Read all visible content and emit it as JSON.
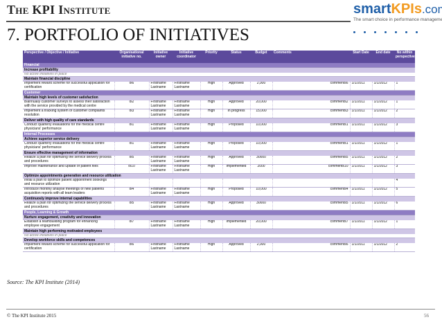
{
  "header": {
    "brand": "The KPI Institute",
    "logo": {
      "smart": "smart",
      "kpis": "KPIs",
      "com": ".com",
      "tagline": "The smart choice in performance management"
    },
    "title": "7. PORTFOLIO OF INITIATIVES"
  },
  "table": {
    "columns": [
      "Perspective / Objective / Initiative",
      "Organisational initiative no.",
      "Initiative owner",
      "Initiative coordinator",
      "Priority",
      "Status",
      "Budget",
      "Comments",
      "Start Date",
      "End date",
      "No within perspective"
    ],
    "rows": [
      {
        "type": "section",
        "label": "Financial"
      },
      {
        "type": "objective",
        "label": "Increase profitability"
      },
      {
        "type": "none",
        "label": "No active initiatives in place"
      },
      {
        "type": "objective",
        "label": "Maintain financial discipline"
      },
      {
        "type": "item",
        "cells": [
          "Implement reward scheme for successful application for certification",
          "oi6",
          "Firstname Lastname",
          "Firstname Lastname",
          "High",
          "Approved",
          "2,000",
          "comments6",
          "1/1/2011",
          "1/1/2012",
          "1"
        ]
      },
      {
        "type": "section",
        "label": "Customer"
      },
      {
        "type": "objective",
        "label": "Maintain high levels of customer satisfaction"
      },
      {
        "type": "item",
        "cells": [
          "Biannually customer surveys to assess their satisfaction with the service provided by the medical centre",
          "oi2",
          "Firstname Lastname",
          "Firstname Lastname",
          "High",
          "Approved",
          "20,000",
          "comments2",
          "1/1/2011",
          "1/1/2012",
          "1"
        ]
      },
      {
        "type": "item",
        "cells": [
          "Implement a tracking system of customer complaints resolution",
          "oi3",
          "Firstname Lastname",
          "Firstname Lastname",
          "High",
          "In progress",
          "15,000",
          "comments3",
          "1/1/2011",
          "1/1/2012",
          "2"
        ]
      },
      {
        "type": "objective",
        "label": "Deliver with high quality of care standards"
      },
      {
        "type": "item",
        "cells": [
          "Conduct quarterly evaluations for the medical centre physicians' performance",
          "oi1",
          "Firstname Lastname",
          "Firstname Lastname",
          "High",
          "Proposed",
          "10,000",
          "comments1",
          "1/1/2011",
          "1/1/2012",
          "3"
        ]
      },
      {
        "type": "section",
        "label": "Internal Processes"
      },
      {
        "type": "objective",
        "label": "Achieve superior service delivery"
      },
      {
        "type": "item",
        "cells": [
          "Conduct quarterly evaluations for the medical centre physicians' performance",
          "oi1",
          "Firstname Lastname",
          "Firstname Lastname",
          "High",
          "Proposed",
          "10,000",
          "comments1",
          "1/1/2011",
          "1/1/2012",
          "1"
        ]
      },
      {
        "type": "objective",
        "label": "Ensure effective management of information"
      },
      {
        "type": "item",
        "cells": [
          "Realize a plan for optimizing the service delivery process and procedures",
          "oi5",
          "Firstname Lastname",
          "Firstname Lastname",
          "High",
          "Approved",
          "30000",
          "comments5",
          "1/1/2011",
          "1/1/2012",
          "2"
        ]
      },
      {
        "type": "item",
        "cells": [
          "Improve maintenance and update of patient files",
          "oi10",
          "Firstname Lastname",
          "Firstname Lastname",
          "High",
          "Implemented",
          "2000",
          "comments10",
          "1/1/2011",
          "1/1/2012",
          "3"
        ]
      },
      {
        "type": "objective",
        "label": "Optimize appointments generation and resource utilization"
      },
      {
        "type": "item",
        "cells": [
          "Initial a plan to optimize patient appointment bookings and resource utilization",
          "",
          "",
          "",
          "",
          "",
          "",
          "",
          "",
          "",
          "4"
        ]
      },
      {
        "type": "item",
        "cells": [
          "Introduce monthly analyse meetings of new patients acquisition reports with all team leaders",
          "oi4",
          "Firstname Lastname",
          "Firstname Lastname",
          "High",
          "Proposed",
          "10,000",
          "comments4",
          "1/1/2011",
          "1/1/2012",
          "5"
        ]
      },
      {
        "type": "objective",
        "label": "Continuosly improve internal capabilities"
      },
      {
        "type": "item",
        "cells": [
          "Realize a plan for optimizing the service delivery process and procedures",
          "oi5",
          "Firstname Lastname",
          "Firstname Lastname",
          "High",
          "Approved",
          "30000",
          "comments5",
          "1/1/2011",
          "1/1/2012",
          "6"
        ]
      },
      {
        "type": "section",
        "label": "People, Learning & Growth"
      },
      {
        "type": "objective",
        "label": "Nurture engagement, creativity and innovation"
      },
      {
        "type": "item",
        "cells": [
          "Establish a teambuilding program for enhancing employee engagement",
          "oi7",
          "Firstname Lastname",
          "Firstname Lastname",
          "High",
          "Implemented",
          "20,000",
          "comments7",
          "1/1/2011",
          "1/1/2012",
          "1"
        ]
      },
      {
        "type": "objective",
        "label": "Maintain high performing motivated employees"
      },
      {
        "type": "none",
        "label": "No active initiatives in place"
      },
      {
        "type": "objective",
        "label": "Develop workforce skills and competences"
      },
      {
        "type": "item",
        "cells": [
          "Implement reward scheme for successful application for certification",
          "oi6",
          "Firstname Lastname",
          "Firstname Lastname",
          "High",
          "Approved",
          "2,000",
          "comments6",
          "1/1/2011",
          "1/1/2012",
          "2"
        ]
      }
    ]
  },
  "footer": {
    "source": "Source: The KPI Institute (2014)",
    "copyright": "© The KPI Institute 2015",
    "page_number": "56"
  }
}
